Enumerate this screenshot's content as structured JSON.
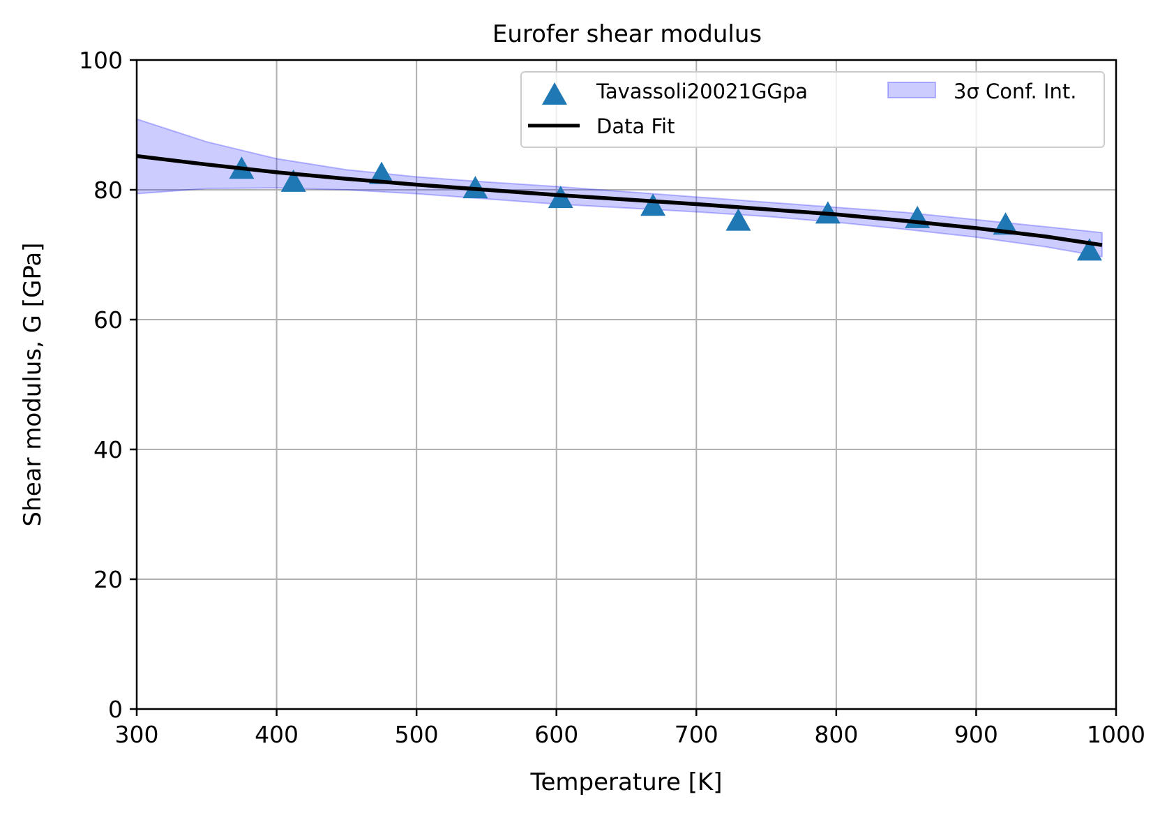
{
  "chart_data": {
    "type": "scatter",
    "title": "Eurofer shear modulus",
    "xlabel": "Temperature [K]",
    "ylabel": "Shear modulus, G [GPa]",
    "xlim": [
      300,
      1000
    ],
    "ylim": [
      0,
      100
    ],
    "xticks": [
      300,
      400,
      500,
      600,
      700,
      800,
      900,
      1000
    ],
    "yticks": [
      0,
      20,
      40,
      60,
      80,
      100
    ],
    "grid": true,
    "legend_position": "top-right",
    "series": [
      {
        "name": "Tavassoli20021GGpa",
        "kind": "scatter",
        "marker": "triangle",
        "color": "#1f77b4",
        "x": [
          375,
          412,
          475,
          542,
          603,
          669,
          730,
          794,
          858,
          921,
          981
        ],
        "y": [
          83.2,
          81.2,
          82.4,
          80.2,
          78.7,
          77.5,
          75.2,
          76.3,
          75.6,
          74.6,
          70.6
        ]
      },
      {
        "name": "Data Fit",
        "kind": "line",
        "color": "#000000",
        "x": [
          300,
          350,
          400,
          450,
          500,
          550,
          600,
          650,
          700,
          750,
          800,
          850,
          900,
          950,
          990
        ],
        "y": [
          85.2,
          83.9,
          82.7,
          81.7,
          80.8,
          80.0,
          79.2,
          78.5,
          77.8,
          77.0,
          76.2,
          75.2,
          74.1,
          72.8,
          71.5
        ]
      },
      {
        "name": "3σ Conf. Int.",
        "kind": "band",
        "color": "#0000ff",
        "x": [
          300,
          350,
          400,
          450,
          500,
          550,
          600,
          650,
          700,
          750,
          800,
          850,
          900,
          950,
          990
        ],
        "upper": [
          90.9,
          87.4,
          84.8,
          83.1,
          82.0,
          81.2,
          80.5,
          79.7,
          78.9,
          78.1,
          77.3,
          76.5,
          75.4,
          74.3,
          73.4
        ],
        "lower": [
          79.4,
          80.2,
          80.3,
          80.0,
          79.4,
          78.6,
          77.8,
          77.2,
          76.6,
          75.9,
          75.0,
          73.9,
          72.7,
          71.2,
          69.7
        ]
      }
    ]
  }
}
